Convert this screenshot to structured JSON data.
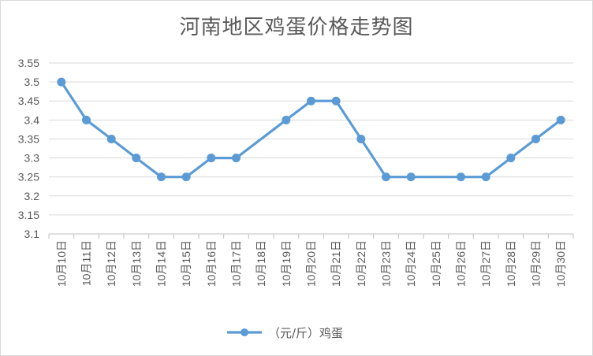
{
  "chart_data": {
    "type": "line",
    "title": "河南地区鸡蛋价格走势图",
    "categories": [
      "10月10日",
      "10月11日",
      "10月12日",
      "10月13日",
      "10月14日",
      "10月15日",
      "10月16日",
      "10月17日",
      "10月18日",
      "10月19日",
      "10月20日",
      "10月21日",
      "10月22日",
      "10月23日",
      "10月24日",
      "10月25日",
      "10月26日",
      "10月27日",
      "10月28日",
      "10月29日",
      "10月30日"
    ],
    "series": [
      {
        "name": "（元/斤）鸡蛋",
        "values": [
          3.5,
          3.4,
          3.35,
          3.3,
          3.25,
          3.25,
          3.3,
          3.3,
          null,
          3.4,
          3.45,
          3.45,
          3.35,
          3.25,
          3.25,
          null,
          3.25,
          3.25,
          3.3,
          3.35,
          3.4
        ],
        "color": "#5B9BD5"
      }
    ],
    "ylim": [
      3.1,
      3.55
    ],
    "yticks": [
      "3.1",
      "3.15",
      "3.2",
      "3.25",
      "3.3",
      "3.35",
      "3.4",
      "3.45",
      "3.5",
      "3.55"
    ],
    "grid": true,
    "legend": "bottom",
    "xlabel": "",
    "ylabel": ""
  }
}
